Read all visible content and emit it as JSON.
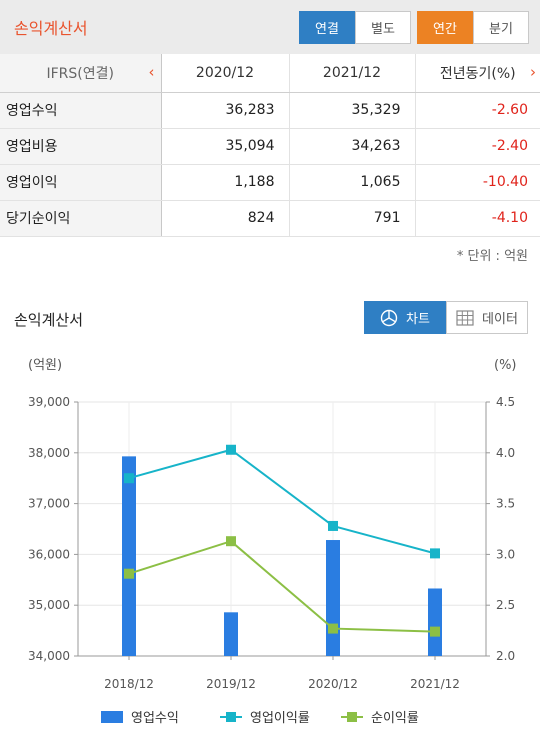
{
  "header": {
    "title": "손익계산서",
    "basis_options": [
      "연결",
      "별도"
    ],
    "basis_selected": "연결",
    "period_options": [
      "연간",
      "분기"
    ],
    "period_selected": "연간"
  },
  "table": {
    "corner_label": "IFRS(연결)",
    "columns": [
      "2020/12",
      "2021/12",
      "전년동기(%)"
    ],
    "rows": [
      {
        "label": "영업수익",
        "v2020": "36,283",
        "v2021": "35,329",
        "yoy": "-2.60"
      },
      {
        "label": "영업비용",
        "v2020": "35,094",
        "v2021": "34,263",
        "yoy": "-2.40"
      },
      {
        "label": "영업이익",
        "v2020": "1,188",
        "v2021": "1,065",
        "yoy": "-10.40"
      },
      {
        "label": "당기순이익",
        "v2020": "824",
        "v2021": "791",
        "yoy": "-4.10"
      }
    ],
    "unit_note": "* 단위 : 억원"
  },
  "chart_section": {
    "title": "손익계산서",
    "chart_button": "차트",
    "data_button": "데이터",
    "view_selected": "차트"
  },
  "colors": {
    "accent": "#e9542e",
    "blue": "#2f7fc4",
    "orange": "#ec8223",
    "negative": "#e0231b",
    "bar": "#2a7de1",
    "line_margin": "#17b4c9",
    "line_net": "#8cbf45"
  },
  "chart_data": {
    "type": "bar",
    "categories": [
      "2018/12",
      "2019/12",
      "2020/12",
      "2021/12"
    ],
    "y_left_label": "(억원)",
    "y_right_label": "(%)",
    "y_left_ticks": [
      "39,000",
      "38,000",
      "37,000",
      "36,000",
      "35,000",
      "34,000"
    ],
    "y_right_ticks": [
      "4.5",
      "4.0",
      "3.5",
      "3.0",
      "2.5",
      "2.0"
    ],
    "ylim_left": [
      34000,
      39000
    ],
    "ylim_right": [
      2.0,
      4.5
    ],
    "grid": true,
    "legend_position": "bottom",
    "series": [
      {
        "name": "영업수익",
        "kind": "bar",
        "axis": "left",
        "values": [
          37930,
          34860,
          36283,
          35329
        ]
      },
      {
        "name": "영업이익률",
        "kind": "line",
        "axis": "right",
        "values": [
          3.75,
          4.03,
          3.28,
          3.01
        ]
      },
      {
        "name": "순이익률",
        "kind": "line",
        "axis": "right",
        "values": [
          2.81,
          3.13,
          2.27,
          2.24
        ]
      }
    ]
  }
}
